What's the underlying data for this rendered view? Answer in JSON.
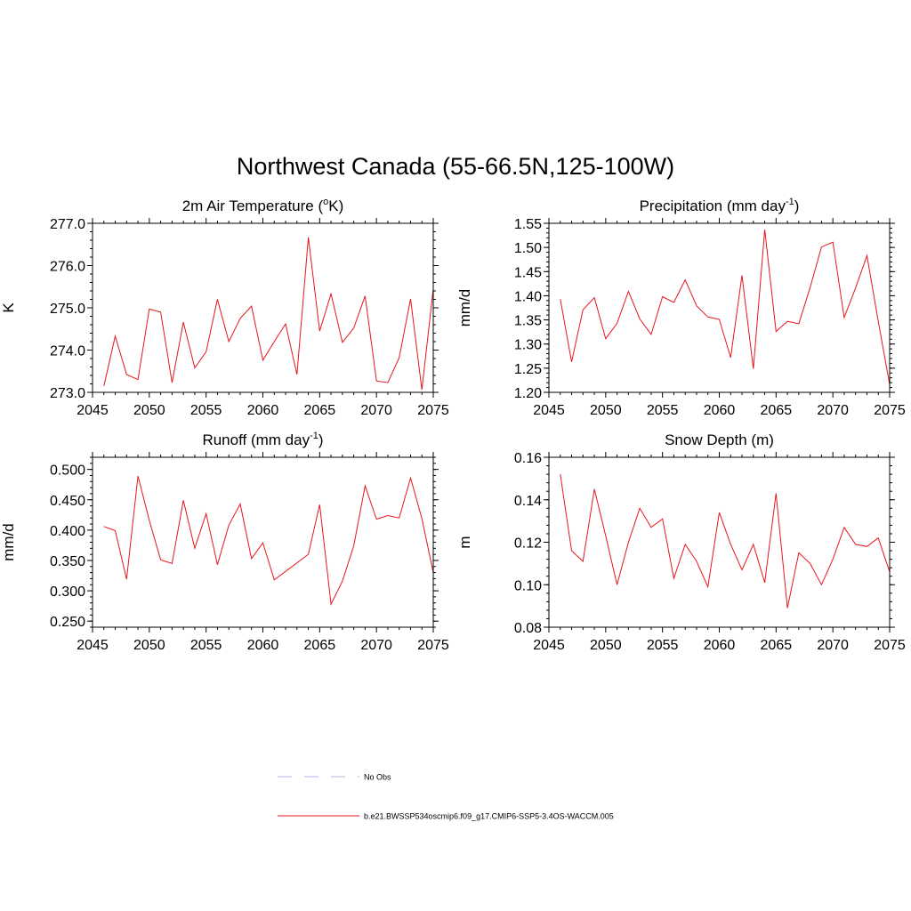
{
  "figure": {
    "title": "Northwest Canada (55-66.5N,125-100W)"
  },
  "chart_data": [
    {
      "type": "line",
      "title": "2m Air Temperature (",
      "title_sup": "o",
      "title_tail": "K)",
      "xlabel": "",
      "ylabel": "K",
      "xlim": [
        2045,
        2075
      ],
      "ylim": [
        273.0,
        277.0
      ],
      "xticks": [
        "2045",
        "2050",
        "2055",
        "2060",
        "2065",
        "2070",
        "2075"
      ],
      "yticks": [
        "273.0",
        "274.0",
        "275.0",
        "276.0",
        "277.0"
      ],
      "ytick_values": [
        273.0,
        274.0,
        275.0,
        276.0,
        277.0
      ],
      "yminor": 0.2,
      "series": [
        {
          "name": "b.e21.BWSSP534oscmip6.f09_g17.CMIP6-SSP5-3.4OS-WACCM.005",
          "color": "#e8141d",
          "x": [
            2046,
            2047,
            2048,
            2049,
            2050,
            2051,
            2052,
            2053,
            2054,
            2055,
            2056,
            2057,
            2058,
            2059,
            2060,
            2061,
            2062,
            2063,
            2064,
            2065,
            2066,
            2067,
            2068,
            2069,
            2070,
            2071,
            2072,
            2073,
            2074,
            2075
          ],
          "values": [
            273.15,
            274.33,
            273.42,
            273.3,
            274.97,
            274.9,
            273.23,
            274.66,
            273.58,
            273.96,
            275.2,
            274.2,
            274.75,
            275.04,
            273.76,
            274.2,
            274.62,
            273.42,
            276.67,
            274.45,
            275.33,
            274.18,
            274.52,
            275.28,
            273.27,
            273.23,
            273.82,
            275.21,
            273.06,
            275.45
          ]
        }
      ]
    },
    {
      "type": "line",
      "title": "Precipitation (mm day",
      "title_sup": "-1",
      "title_tail": ")",
      "xlabel": "",
      "ylabel": "mm/d",
      "xlim": [
        2045,
        2075
      ],
      "ylim": [
        1.2,
        1.55
      ],
      "xticks": [
        "2045",
        "2050",
        "2055",
        "2060",
        "2065",
        "2070",
        "2075"
      ],
      "yticks": [
        "1.20",
        "1.25",
        "1.30",
        "1.35",
        "1.40",
        "1.45",
        "1.50",
        "1.55"
      ],
      "ytick_values": [
        1.2,
        1.25,
        1.3,
        1.35,
        1.4,
        1.45,
        1.5,
        1.55
      ],
      "yminor": 0.01,
      "series": [
        {
          "name": "b.e21.BWSSP534oscmip6.f09_g17.CMIP6-SSP5-3.4OS-WACCM.005",
          "color": "#e8141d",
          "x": [
            2046,
            2047,
            2048,
            2049,
            2050,
            2051,
            2052,
            2053,
            2054,
            2055,
            2056,
            2057,
            2058,
            2059,
            2060,
            2061,
            2062,
            2063,
            2064,
            2065,
            2066,
            2067,
            2068,
            2069,
            2070,
            2071,
            2072,
            2073,
            2074,
            2075
          ],
          "values": [
            1.393,
            1.263,
            1.371,
            1.396,
            1.311,
            1.343,
            1.409,
            1.352,
            1.32,
            1.398,
            1.386,
            1.433,
            1.379,
            1.356,
            1.351,
            1.272,
            1.442,
            1.249,
            1.537,
            1.326,
            1.347,
            1.342,
            1.417,
            1.501,
            1.511,
            1.355,
            1.416,
            1.483,
            1.347,
            1.216
          ]
        }
      ]
    },
    {
      "type": "line",
      "title": "Runoff (mm day",
      "title_sup": "-1",
      "title_tail": ")",
      "xlabel": "",
      "ylabel": "mm/d",
      "xlim": [
        2045,
        2075
      ],
      "ylim": [
        0.24,
        0.52
      ],
      "xticks": [
        "2045",
        "2050",
        "2055",
        "2060",
        "2065",
        "2070",
        "2075"
      ],
      "yticks": [
        "0.250",
        "0.300",
        "0.350",
        "0.400",
        "0.450",
        "0.500"
      ],
      "ytick_values": [
        0.25,
        0.3,
        0.35,
        0.4,
        0.45,
        0.5
      ],
      "yminor": 0.01,
      "series": [
        {
          "name": "b.e21.BWSSP534oscmip6.f09_g17.CMIP6-SSP5-3.4OS-WACCM.005",
          "color": "#e8141d",
          "x": [
            2046,
            2047,
            2048,
            2049,
            2050,
            2051,
            2052,
            2053,
            2054,
            2055,
            2056,
            2057,
            2058,
            2059,
            2060,
            2061,
            2064,
            2065,
            2066,
            2067,
            2068,
            2069,
            2070,
            2071,
            2072,
            2073,
            2074,
            2075
          ],
          "values": [
            0.406,
            0.399,
            0.319,
            0.489,
            0.416,
            0.351,
            0.345,
            0.449,
            0.37,
            0.427,
            0.343,
            0.408,
            0.443,
            0.353,
            0.379,
            0.318,
            0.36,
            0.442,
            0.278,
            0.316,
            0.374,
            0.473,
            0.418,
            0.424,
            0.42,
            0.486,
            0.419,
            0.33
          ]
        }
      ]
    },
    {
      "type": "line",
      "title": "Snow Depth (m)",
      "title_sup": "",
      "title_tail": "",
      "xlabel": "",
      "ylabel": "m",
      "xlim": [
        2045,
        2075
      ],
      "ylim": [
        0.08,
        0.16
      ],
      "xticks": [
        "2045",
        "2050",
        "2055",
        "2060",
        "2065",
        "2070",
        "2075"
      ],
      "yticks": [
        "0.08",
        "0.10",
        "0.12",
        "0.14",
        "0.16"
      ],
      "ytick_values": [
        0.08,
        0.1,
        0.12,
        0.14,
        0.16
      ],
      "yminor": 0.004,
      "series": [
        {
          "name": "b.e21.BWSSP534oscmip6.f09_g17.CMIP6-SSP5-3.4OS-WACCM.005",
          "color": "#e8141d",
          "x": [
            2046,
            2047,
            2048,
            2049,
            2050,
            2051,
            2052,
            2053,
            2054,
            2055,
            2056,
            2057,
            2058,
            2059,
            2060,
            2061,
            2062,
            2063,
            2064,
            2065,
            2066,
            2067,
            2068,
            2069,
            2070,
            2071,
            2072,
            2073,
            2074,
            2075
          ],
          "values": [
            0.152,
            0.116,
            0.111,
            0.145,
            0.123,
            0.1,
            0.12,
            0.136,
            0.127,
            0.131,
            0.103,
            0.119,
            0.111,
            0.099,
            0.134,
            0.119,
            0.107,
            0.119,
            0.101,
            0.143,
            0.089,
            0.115,
            0.11,
            0.1,
            0.112,
            0.127,
            0.119,
            0.118,
            0.122,
            0.106
          ]
        }
      ]
    }
  ],
  "legend": {
    "placement": "bottom-center",
    "entries": [
      {
        "label": "No Obs",
        "color": "#b3b3e6",
        "style": "dashed"
      },
      {
        "label": "b.e21.BWSSP534oscmip6.f09_g17.CMIP6-SSP5-3.4OS-WACCM.005",
        "color": "#e8141d",
        "style": "solid"
      }
    ]
  }
}
